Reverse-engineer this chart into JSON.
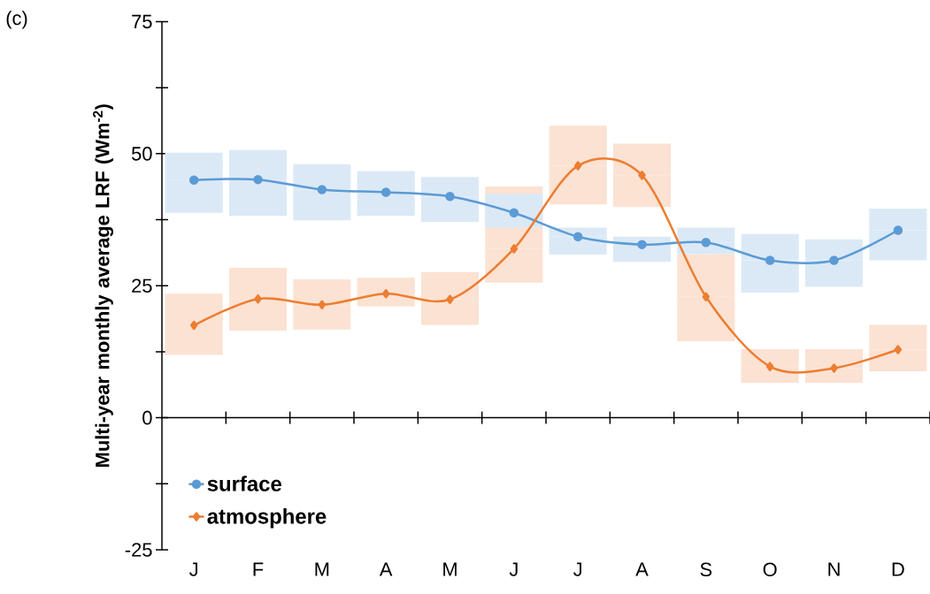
{
  "chart_data": {
    "type": "line",
    "annotations": [
      "(c)"
    ],
    "ylabel": "Multi-year monthly average LRF (Wm$^{-2}$)",
    "categories": [
      "J",
      "F",
      "M",
      "A",
      "M",
      "J",
      "J",
      "A",
      "S",
      "O",
      "N",
      "D"
    ],
    "ylim": [
      -25,
      75
    ],
    "yticks": [
      -25,
      {
        "value": -12.5,
        "label": null
      },
      0,
      {
        "value": 12.5,
        "label": null
      },
      25,
      {
        "value": 37.5,
        "label": null
      },
      50,
      {
        "value": 62.5,
        "label": null
      },
      75
    ],
    "legend": "bottom left",
    "series": [
      {
        "name": "surface",
        "color": "#5b9bd5",
        "marker": "circle",
        "values": [
          45.0,
          45.1,
          43.2,
          42.7,
          41.9,
          38.8,
          34.3,
          32.8,
          33.2,
          29.8,
          29.8,
          35.5
        ],
        "errors": [
          [
            38.8,
            50.2
          ],
          [
            38.2,
            50.7
          ],
          [
            37.4,
            48.0
          ],
          [
            38.2,
            46.7
          ],
          [
            37.1,
            45.6
          ],
          [
            36.0,
            42.4
          ],
          [
            30.9,
            36.0
          ],
          [
            29.5,
            34.3
          ],
          [
            31.0,
            36.0
          ],
          [
            23.7,
            34.8
          ],
          [
            24.8,
            33.8
          ],
          [
            29.8,
            39.6
          ]
        ]
      },
      {
        "name": "atmosphere",
        "color": "#ed7d31",
        "marker": "diamond",
        "values": [
          17.5,
          22.5,
          21.4,
          23.5,
          22.4,
          32.0,
          47.7,
          45.9,
          22.9,
          9.7,
          9.4,
          12.9
        ],
        "errors": [
          [
            11.9,
            23.5
          ],
          [
            16.5,
            28.4
          ],
          [
            16.7,
            26.2
          ],
          [
            21.1,
            26.5
          ],
          [
            17.6,
            27.6
          ],
          [
            25.6,
            43.8
          ],
          [
            40.4,
            55.3
          ],
          [
            39.9,
            51.9
          ],
          [
            14.5,
            31.0
          ],
          [
            6.6,
            13.0
          ],
          [
            6.6,
            13.0
          ],
          [
            8.8,
            17.6
          ]
        ]
      }
    ]
  }
}
